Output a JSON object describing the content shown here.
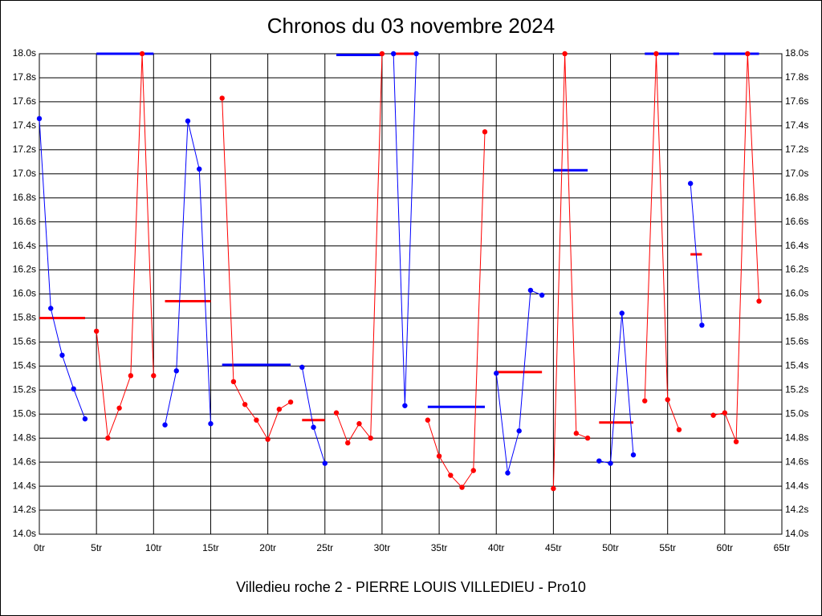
{
  "chart_data": {
    "type": "line",
    "title": "Chronos du 03 novembre 2024",
    "xlabel": "Villedieu roche 2 - PIERRE LOUIS VILLEDIEU - Pro10",
    "x": [
      0,
      1,
      2,
      3,
      4,
      5,
      6,
      7,
      8,
      9,
      10,
      11,
      12,
      13,
      14,
      15,
      16,
      17,
      18,
      19,
      20,
      21,
      22,
      23,
      24,
      25,
      26,
      27,
      28,
      29,
      30,
      31,
      32,
      33,
      34,
      35,
      36,
      37,
      38,
      39,
      40,
      41,
      42,
      43,
      44,
      45,
      46,
      47,
      48,
      49,
      50,
      51,
      52,
      53,
      54,
      55,
      56,
      57,
      58,
      59,
      60,
      61,
      62,
      63
    ],
    "series": [
      {
        "color": "#0000ff",
        "values": [
          17.46,
          15.88,
          15.49,
          15.21,
          14.96,
          null,
          null,
          null,
          null,
          null,
          null,
          14.91,
          15.36,
          17.44,
          17.04,
          14.92,
          null,
          null,
          null,
          null,
          null,
          null,
          null,
          15.39,
          14.89,
          14.59,
          null,
          null,
          null,
          null,
          null,
          18.0,
          15.07,
          18.0,
          null,
          null,
          null,
          null,
          null,
          null,
          15.34,
          14.51,
          14.86,
          16.03,
          15.99,
          null,
          null,
          null,
          null,
          14.61,
          14.59,
          15.84,
          14.66,
          null,
          null,
          null,
          null,
          16.92,
          15.74,
          null,
          null,
          null,
          null,
          null
        ]
      },
      {
        "color": "#ff0000",
        "values": [
          null,
          null,
          null,
          null,
          null,
          15.69,
          14.8,
          15.05,
          15.32,
          18.0,
          15.32,
          null,
          null,
          null,
          null,
          null,
          17.63,
          15.27,
          15.08,
          14.95,
          14.79,
          15.04,
          15.1,
          null,
          null,
          null,
          15.01,
          14.76,
          14.92,
          14.8,
          18.0,
          null,
          null,
          null,
          14.95,
          14.65,
          14.49,
          14.39,
          14.53,
          17.35,
          null,
          null,
          null,
          null,
          null,
          14.38,
          18.0,
          14.84,
          14.8,
          null,
          null,
          null,
          null,
          15.11,
          18.0,
          15.12,
          14.87,
          null,
          null,
          14.99,
          15.01,
          14.77,
          18.0,
          15.94
        ]
      }
    ],
    "averages": [
      {
        "x": [
          0,
          4
        ],
        "value": 15.8,
        "color": "#ff0000"
      },
      {
        "x": [
          5,
          10
        ],
        "value": 18.0,
        "color": "#0000ff"
      },
      {
        "x": [
          11,
          15
        ],
        "value": 15.94,
        "color": "#ff0000"
      },
      {
        "x": [
          16,
          22
        ],
        "value": 15.41,
        "color": "#0000ff"
      },
      {
        "x": [
          23,
          25
        ],
        "value": 14.95,
        "color": "#ff0000"
      },
      {
        "x": [
          26,
          30
        ],
        "value": 17.99,
        "color": "#0000ff"
      },
      {
        "x": [
          31,
          33
        ],
        "value": 18.0,
        "color": "#ff0000"
      },
      {
        "x": [
          34,
          39
        ],
        "value": 15.06,
        "color": "#0000ff"
      },
      {
        "x": [
          40,
          44
        ],
        "value": 15.35,
        "color": "#ff0000"
      },
      {
        "x": [
          45,
          48
        ],
        "value": 17.03,
        "color": "#0000ff"
      },
      {
        "x": [
          49,
          52
        ],
        "value": 14.93,
        "color": "#ff0000"
      },
      {
        "x": [
          53,
          56
        ],
        "value": 18.0,
        "color": "#0000ff"
      },
      {
        "x": [
          57,
          58
        ],
        "value": 16.33,
        "color": "#ff0000"
      },
      {
        "x": [
          59,
          63
        ],
        "value": 18.0,
        "color": "#0000ff"
      }
    ],
    "xlim": [
      0,
      65
    ],
    "ylim": [
      14.0,
      18.0
    ],
    "xticks": [
      {
        "value": 0,
        "label": "0tr"
      },
      {
        "value": 5,
        "label": "5tr"
      },
      {
        "value": 10,
        "label": "10tr"
      },
      {
        "value": 15,
        "label": "15tr"
      },
      {
        "value": 20,
        "label": "20tr"
      },
      {
        "value": 25,
        "label": "25tr"
      },
      {
        "value": 30,
        "label": "30tr"
      },
      {
        "value": 35,
        "label": "35tr"
      },
      {
        "value": 40,
        "label": "40tr"
      },
      {
        "value": 45,
        "label": "45tr"
      },
      {
        "value": 50,
        "label": "50tr"
      },
      {
        "value": 55,
        "label": "55tr"
      },
      {
        "value": 60,
        "label": "60tr"
      },
      {
        "value": 65,
        "label": "65tr"
      }
    ],
    "yticks": [
      {
        "value": 14.0,
        "label": "14.0s"
      },
      {
        "value": 14.2,
        "label": "14.2s"
      },
      {
        "value": 14.4,
        "label": "14.4s"
      },
      {
        "value": 14.6,
        "label": "14.6s"
      },
      {
        "value": 14.8,
        "label": "14.8s"
      },
      {
        "value": 15.0,
        "label": "15.0s"
      },
      {
        "value": 15.2,
        "label": "15.2s"
      },
      {
        "value": 15.4,
        "label": "15.4s"
      },
      {
        "value": 15.6,
        "label": "15.6s"
      },
      {
        "value": 15.8,
        "label": "15.8s"
      },
      {
        "value": 16.0,
        "label": "16.0s"
      },
      {
        "value": 16.2,
        "label": "16.2s"
      },
      {
        "value": 16.4,
        "label": "16.4s"
      },
      {
        "value": 16.6,
        "label": "16.6s"
      },
      {
        "value": 16.8,
        "label": "16.8s"
      },
      {
        "value": 17.0,
        "label": "17.0s"
      },
      {
        "value": 17.2,
        "label": "17.2s"
      },
      {
        "value": 17.4,
        "label": "17.4s"
      },
      {
        "value": 17.6,
        "label": "17.6s"
      },
      {
        "value": 17.8,
        "label": "17.8s"
      },
      {
        "value": 18.0,
        "label": "18.0s"
      }
    ],
    "grid": true
  }
}
